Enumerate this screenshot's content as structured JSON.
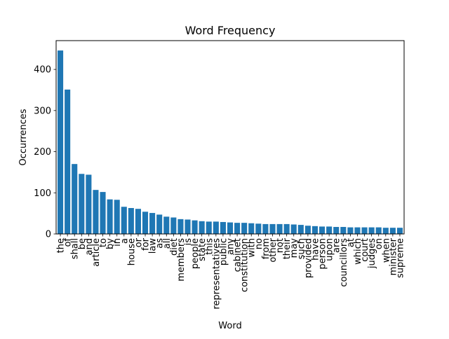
{
  "chart_data": {
    "type": "bar",
    "title": "Word Frequency",
    "xlabel": "Word",
    "ylabel": "Occurrences",
    "ylim": [
      0,
      470
    ],
    "yticks": [
      0,
      100,
      200,
      300,
      400
    ],
    "grid": false,
    "bar_color": "#1f77b4",
    "categories": [
      "the",
      "of",
      "shall",
      "be",
      "and",
      "article",
      "to",
      "by",
      "in",
      "a",
      "house",
      "or",
      "for",
      "law",
      "as",
      "all",
      "diet",
      "members",
      "is",
      "people",
      "state",
      "this",
      "representatives",
      "public",
      "any",
      "cabinet",
      "constitution",
      "with",
      "no",
      "from",
      "other",
      "not",
      "their",
      "may",
      "such",
      "provided",
      "have",
      "person",
      "upon",
      "are",
      "councillors",
      "at",
      "which",
      "court",
      "judges",
      "on",
      "when",
      "minister",
      "supreme"
    ],
    "values": [
      446,
      351,
      170,
      146,
      144,
      107,
      102,
      84,
      83,
      66,
      63,
      61,
      54,
      51,
      47,
      42,
      40,
      36,
      35,
      33,
      31,
      30,
      30,
      29,
      28,
      27,
      27,
      26,
      25,
      24,
      24,
      24,
      24,
      23,
      22,
      20,
      19,
      18,
      18,
      17,
      17,
      16,
      16,
      16,
      16,
      16,
      15,
      15,
      15
    ]
  }
}
